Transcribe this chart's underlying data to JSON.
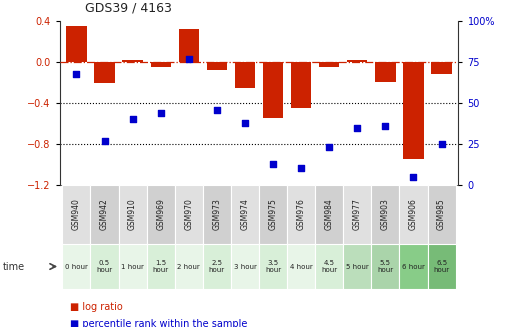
{
  "title": "GDS39 / 4163",
  "samples": [
    "GSM940",
    "GSM942",
    "GSM910",
    "GSM969",
    "GSM970",
    "GSM973",
    "GSM974",
    "GSM975",
    "GSM976",
    "GSM984",
    "GSM977",
    "GSM903",
    "GSM906",
    "GSM985"
  ],
  "time_labels": [
    "0 hour",
    "0.5\nhour",
    "1 hour",
    "1.5\nhour",
    "2 hour",
    "2.5\nhour",
    "3 hour",
    "3.5\nhour",
    "4 hour",
    "4.5\nhour",
    "5 hour",
    "5.5\nhour",
    "6 hour",
    "6.5\nhour"
  ],
  "log_ratio": [
    0.35,
    -0.2,
    0.02,
    -0.05,
    0.32,
    -0.08,
    -0.25,
    -0.55,
    -0.45,
    -0.05,
    0.02,
    -0.19,
    -0.95,
    -0.12
  ],
  "percentile": [
    68,
    27,
    40,
    44,
    77,
    46,
    38,
    13,
    10,
    23,
    35,
    36,
    5,
    25
  ],
  "ylim_left": [
    -1.2,
    0.4
  ],
  "ylim_right": [
    0,
    100
  ],
  "bar_color": "#cc2200",
  "dot_color": "#0000cc",
  "grid_color": "#000000",
  "refline_color": "#cc2200",
  "sample_cell_colors": [
    "#e0e0e0",
    "#d0d0d0",
    "#e0e0e0",
    "#d0d0d0",
    "#e0e0e0",
    "#d0d0d0",
    "#e0e0e0",
    "#d0d0d0",
    "#e0e0e0",
    "#d0d0d0",
    "#e0e0e0",
    "#d0d0d0",
    "#e0e0e0",
    "#d0d0d0"
  ],
  "time_cell_colors": [
    "#e8f5e8",
    "#d8efd8",
    "#e8f5e8",
    "#d8efd8",
    "#e8f5e8",
    "#d8efd8",
    "#e8f5e8",
    "#d8efd8",
    "#e8f5e8",
    "#d8efd8",
    "#bbdebb",
    "#aad4aa",
    "#88cc88",
    "#77bb77"
  ],
  "yticks_left": [
    -1.2,
    -0.8,
    -0.4,
    0.0,
    0.4
  ],
  "yticks_right": [
    0,
    25,
    50,
    75,
    100
  ],
  "ytick_labels_right": [
    "0",
    "25",
    "50",
    "75",
    "100%"
  ]
}
